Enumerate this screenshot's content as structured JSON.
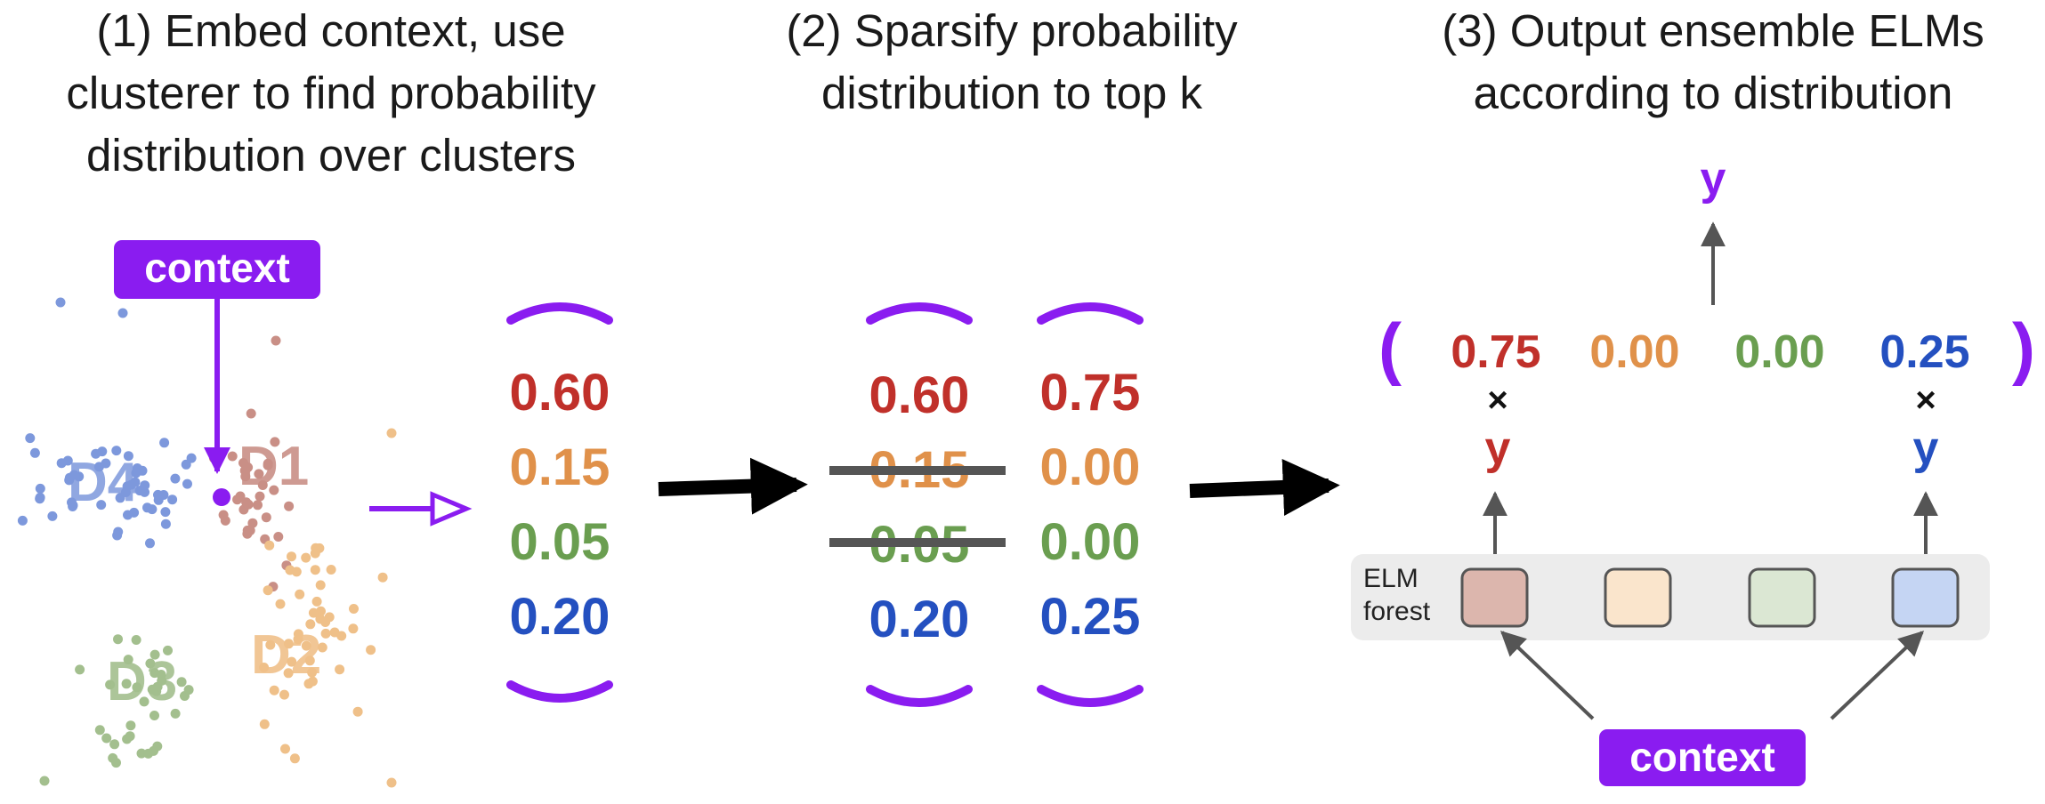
{
  "colors": {
    "purple": "#8a1cf0",
    "red": "#c0302a",
    "orange": "#e0914a",
    "green": "#6a9e50",
    "blue": "#2450c0",
    "d1": "#c98f86",
    "d2": "#efc089",
    "d3": "#a3bf8e",
    "d4": "#7d98dc",
    "arrow": "#000000",
    "gray": "#555555"
  },
  "steps": {
    "step1": {
      "line1": "(1) Embed context, use",
      "line2": "clusterer to find probability",
      "line3": "distribution over clusters"
    },
    "step2": {
      "line1": "(2) Sparsify probability",
      "line2": "distribution to top k"
    },
    "step3": {
      "line1": "(3) Output ensemble ELMs",
      "line2": "according to distribution"
    }
  },
  "cluster_panel": {
    "context_label": "context",
    "clusters": [
      {
        "name": "D1",
        "color": "d1"
      },
      {
        "name": "D2",
        "color": "d2"
      },
      {
        "name": "D3",
        "color": "d3"
      },
      {
        "name": "D4",
        "color": "d4"
      }
    ]
  },
  "distribution": [
    "0.60",
    "0.15",
    "0.05",
    "0.20"
  ],
  "sparsified": {
    "original": [
      "0.60",
      "0.15",
      "0.05",
      "0.20"
    ],
    "struck": [
      false,
      true,
      true,
      false
    ],
    "topk": [
      "0.75",
      "0.00",
      "0.00",
      "0.25"
    ]
  },
  "ensemble": {
    "weights": [
      "0.75",
      "0.00",
      "0.00",
      "0.25"
    ],
    "times_symbol": "×",
    "output_label": "y",
    "expert_outputs": [
      "y",
      "y"
    ],
    "paren_open": "(",
    "paren_close": ")",
    "forest_label_line1": "ELM",
    "forest_label_line2": "forest",
    "context_label": "context",
    "experts": [
      {
        "fill": "#dcb6ad",
        "active": true
      },
      {
        "fill": "#fae5cc",
        "active": false
      },
      {
        "fill": "#dbe7d3",
        "active": false
      },
      {
        "fill": "#c5d5f3",
        "active": true
      }
    ]
  }
}
